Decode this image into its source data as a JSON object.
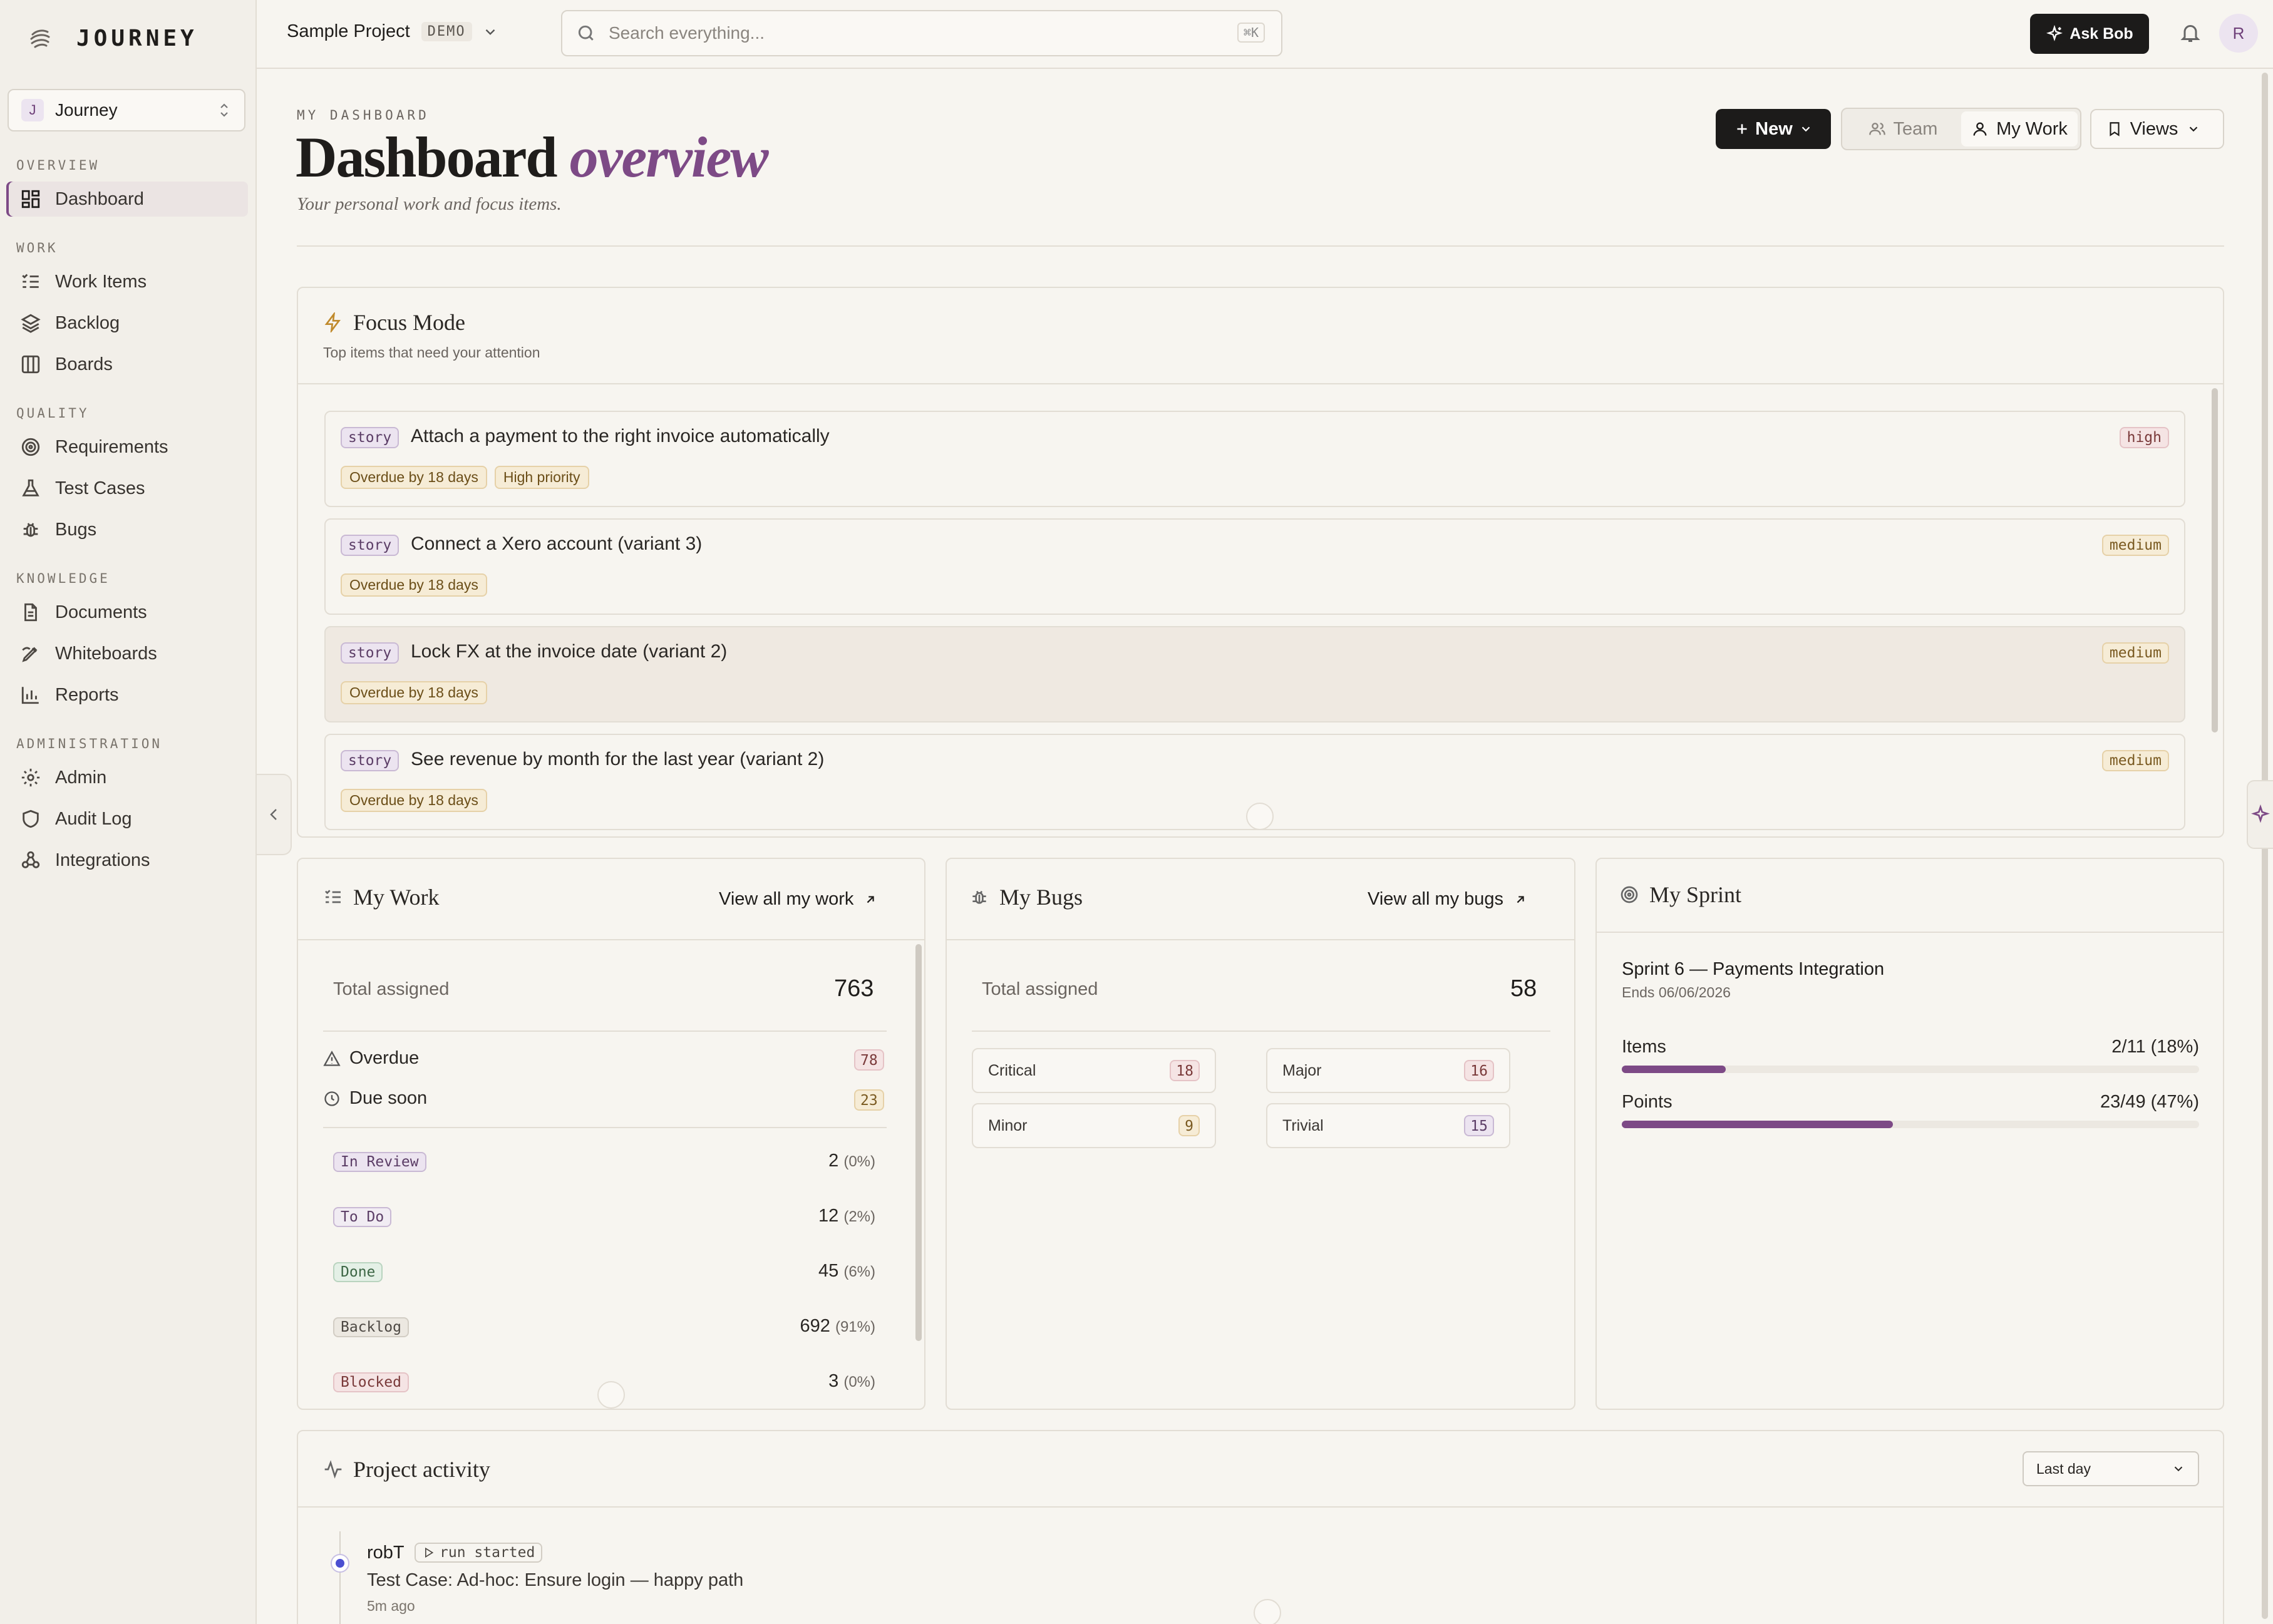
{
  "brand": {
    "name": "JOURNEY"
  },
  "workspace": {
    "initial": "J",
    "name": "Journey"
  },
  "sidebar": {
    "sections": [
      {
        "label": "OVERVIEW",
        "items": [
          {
            "label": "Dashboard",
            "icon": "dashboard-icon",
            "active": true
          }
        ]
      },
      {
        "label": "WORK",
        "items": [
          {
            "label": "Work Items",
            "icon": "list-icon"
          },
          {
            "label": "Backlog",
            "icon": "layers-icon"
          },
          {
            "label": "Boards",
            "icon": "columns-icon"
          }
        ]
      },
      {
        "label": "QUALITY",
        "items": [
          {
            "label": "Requirements",
            "icon": "target-icon"
          },
          {
            "label": "Test Cases",
            "icon": "flask-icon"
          },
          {
            "label": "Bugs",
            "icon": "bug-icon"
          }
        ]
      },
      {
        "label": "KNOWLEDGE",
        "items": [
          {
            "label": "Documents",
            "icon": "document-icon"
          },
          {
            "label": "Whiteboards",
            "icon": "pen-icon"
          },
          {
            "label": "Reports",
            "icon": "bar-chart-icon"
          }
        ]
      },
      {
        "label": "ADMINISTRATION",
        "items": [
          {
            "label": "Admin",
            "icon": "gear-icon"
          },
          {
            "label": "Audit Log",
            "icon": "shield-icon"
          },
          {
            "label": "Integrations",
            "icon": "webhook-icon"
          }
        ]
      }
    ]
  },
  "topbar": {
    "project": "Sample Project",
    "project_badge": "DEMO",
    "search_placeholder": "Search everything...",
    "search_shortcut": "⌘K",
    "ask_bob": "Ask Bob",
    "avatar_initial": "R"
  },
  "header": {
    "eyebrow": "MY DASHBOARD",
    "title_main": "Dashboard",
    "title_accent": "overview",
    "subtitle": "Your personal work and focus items.",
    "new_label": "New",
    "team_label": "Team",
    "mywork_label": "My Work",
    "views_label": "Views"
  },
  "focus": {
    "title": "Focus Mode",
    "subtitle": "Top items that need your attention",
    "items": [
      {
        "type": "story",
        "title": "Attach a payment to the right invoice automatically",
        "priority": "high",
        "chips": [
          "Overdue by 18 days",
          "High priority"
        ]
      },
      {
        "type": "story",
        "title": "Connect a Xero account (variant 3)",
        "priority": "medium",
        "chips": [
          "Overdue by 18 days"
        ]
      },
      {
        "type": "story",
        "title": "Lock FX at the invoice date (variant 2)",
        "priority": "medium",
        "chips": [
          "Overdue by 18 days"
        ]
      },
      {
        "type": "story",
        "title": "See revenue by month for the last year (variant 2)",
        "priority": "medium",
        "chips": [
          "Overdue by 18 days"
        ]
      }
    ]
  },
  "my_work": {
    "title": "My Work",
    "view_all": "View all my work",
    "total_label": "Total assigned",
    "total": "763",
    "overdue_label": "Overdue",
    "overdue": "78",
    "due_soon_label": "Due soon",
    "due_soon": "23",
    "statuses": [
      {
        "label": "In Review",
        "count": "2",
        "pct": "(0%)"
      },
      {
        "label": "To Do",
        "count": "12",
        "pct": "(2%)"
      },
      {
        "label": "Done",
        "count": "45",
        "pct": "(6%)"
      },
      {
        "label": "Backlog",
        "count": "692",
        "pct": "(91%)"
      },
      {
        "label": "Blocked",
        "count": "3",
        "pct": "(0%)"
      }
    ]
  },
  "my_bugs": {
    "title": "My Bugs",
    "view_all": "View all my bugs",
    "total_label": "Total assigned",
    "total": "58",
    "severities": [
      {
        "label": "Critical",
        "count": "18",
        "color": "red"
      },
      {
        "label": "Major",
        "count": "16",
        "color": "red"
      },
      {
        "label": "Minor",
        "count": "9",
        "color": "amber"
      },
      {
        "label": "Trivial",
        "count": "15",
        "color": "plum"
      }
    ]
  },
  "my_sprint": {
    "title": "My Sprint",
    "sprint_name": "Sprint 6 — Payments Integration",
    "ends": "Ends 06/06/2026",
    "items_label": "Items",
    "items_value": "2/11 (18%)",
    "items_fraction": 0.18,
    "points_label": "Points",
    "points_value": "23/49 (47%)",
    "points_fraction": 0.47
  },
  "activity": {
    "title": "Project activity",
    "range": "Last day",
    "entries": [
      {
        "user": "robT",
        "action": "run started",
        "text": "Test Case: Ad-hoc: Ensure login — happy path",
        "time": "5m ago"
      }
    ]
  },
  "colors": {
    "accent": "#7d4a86",
    "background": "#f7f5f0",
    "sidebar": "#f2efe9",
    "dark_button": "#1c1b1a"
  }
}
